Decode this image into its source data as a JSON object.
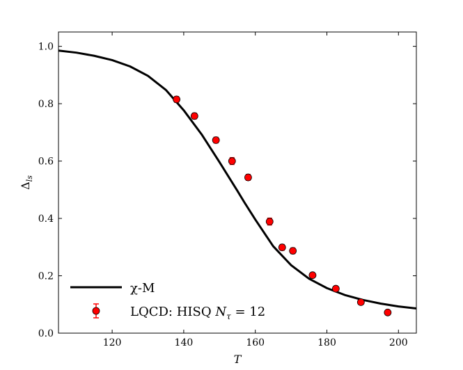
{
  "chart_data": {
    "type": "line",
    "xlabel": "T",
    "ylabel": "Δ",
    "ylabel_sub": "ls",
    "xlim": [
      105,
      205
    ],
    "ylim": [
      0.0,
      1.05
    ],
    "x_ticks": [
      120,
      140,
      160,
      180,
      200
    ],
    "x_tick_labels": [
      "120",
      "140",
      "160",
      "180",
      "200"
    ],
    "y_ticks": [
      0.0,
      0.2,
      0.4,
      0.6,
      0.8,
      1.0
    ],
    "y_tick_labels": [
      "0.0",
      "0.2",
      "0.4",
      "0.6",
      "0.8",
      "1.0"
    ],
    "grid": false,
    "legend_position": "bottom-left",
    "series": [
      {
        "name": "χ-M",
        "kind": "line",
        "color": "#000000",
        "x": [
          105,
          110,
          115,
          120,
          125,
          130,
          135,
          140,
          145,
          150,
          155,
          157,
          160,
          165,
          170,
          175,
          180,
          185,
          190,
          195,
          200,
          205
        ],
        "y": [
          0.985,
          0.978,
          0.967,
          0.952,
          0.93,
          0.897,
          0.848,
          0.777,
          0.693,
          0.596,
          0.496,
          0.455,
          0.396,
          0.303,
          0.237,
          0.19,
          0.157,
          0.133,
          0.116,
          0.103,
          0.093,
          0.086
        ]
      },
      {
        "name": "LQCD: HISQ",
        "name_math": "N",
        "name_math_sub": "τ",
        "name_suffix": " = 12",
        "kind": "scatter",
        "color": "#ff0000",
        "x": [
          138,
          143,
          149,
          153.5,
          158,
          164,
          167.5,
          170.5,
          176,
          182.5,
          189.5,
          197
        ],
        "y": [
          0.815,
          0.757,
          0.673,
          0.6,
          0.543,
          0.389,
          0.299,
          0.287,
          0.202,
          0.155,
          0.108,
          0.072
        ],
        "err": [
          0.01,
          0.01,
          0.01,
          0.012,
          0.01,
          0.012,
          0.01,
          0.01,
          0.008,
          0.008,
          0.007,
          0.006
        ]
      }
    ]
  }
}
